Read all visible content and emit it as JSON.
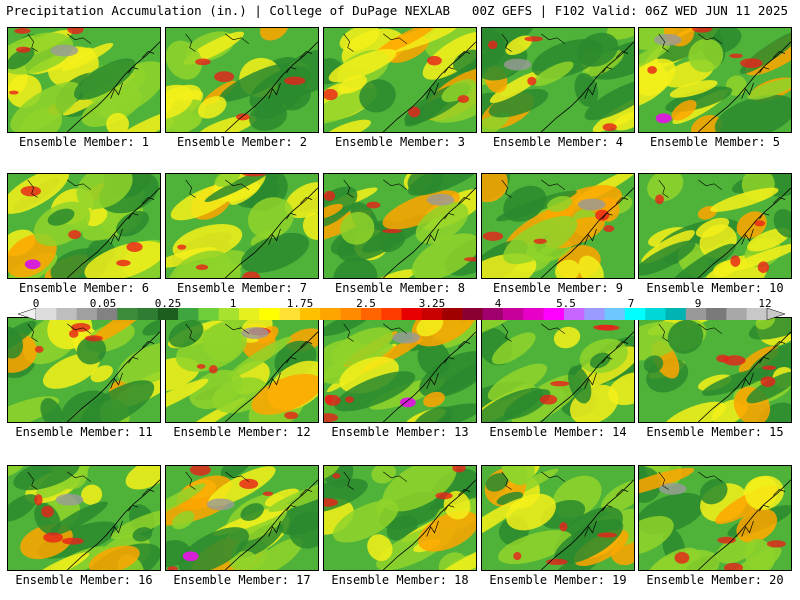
{
  "header": {
    "title": "Precipitation Accumulation (in.) | College of DuPage NEXLAB",
    "run_info": "00Z GEFS | F102 Valid: 06Z WED JUN 11 2025"
  },
  "panel_label_prefix": "Ensemble Member: ",
  "members": [
    {
      "label": "Ensemble Member: 1"
    },
    {
      "label": "Ensemble Member: 2"
    },
    {
      "label": "Ensemble Member: 3"
    },
    {
      "label": "Ensemble Member: 4"
    },
    {
      "label": "Ensemble Member: 5"
    },
    {
      "label": "Ensemble Member: 6"
    },
    {
      "label": "Ensemble Member: 7"
    },
    {
      "label": "Ensemble Member: 8"
    },
    {
      "label": "Ensemble Member: 9"
    },
    {
      "label": "Ensemble Member: 10"
    },
    {
      "label": "Ensemble Member: 11"
    },
    {
      "label": "Ensemble Member: 12"
    },
    {
      "label": "Ensemble Member: 13"
    },
    {
      "label": "Ensemble Member: 14"
    },
    {
      "label": "Ensemble Member: 15"
    },
    {
      "label": "Ensemble Member: 16"
    },
    {
      "label": "Ensemble Member: 17"
    },
    {
      "label": "Ensemble Member: 18"
    },
    {
      "label": "Ensemble Member: 19"
    },
    {
      "label": "Ensemble Member: 20"
    }
  ],
  "colorbar": {
    "tick_labels": [
      "0",
      "0.05",
      "0.25",
      "1",
      "1.75",
      "2.5",
      "3.25",
      "4",
      "5.5",
      "7",
      "9",
      "12"
    ],
    "colors": [
      "#dcdcdc",
      "#bebebe",
      "#a0a0a0",
      "#828282",
      "#3c8c3c",
      "#2e7d32",
      "#1b5e20",
      "#3fa63f",
      "#6fcf3a",
      "#a6e22e",
      "#e6f01e",
      "#ffff00",
      "#ffe135",
      "#ffc000",
      "#ffa500",
      "#ff8c00",
      "#ff6400",
      "#ff3c00",
      "#e60000",
      "#c80000",
      "#a00000",
      "#8b0032",
      "#a0006e",
      "#c8009b",
      "#e600c8",
      "#ff00ff",
      "#c864ff",
      "#9a9aff",
      "#6ec8ff",
      "#00ffff",
      "#00d8d8",
      "#00b4b4",
      "#999999",
      "#7a7a7a",
      "#a8a8a8",
      "#c8c8c8"
    ]
  },
  "map_colors": {
    "green_dark": "#2a8a2e",
    "green_mid": "#4fb33a",
    "green_light": "#8fd42a",
    "yellow": "#f5f01a",
    "orange": "#ffa500",
    "red": "#e8201a",
    "magenta": "#d81fd8",
    "gray": "#9a9a9a"
  }
}
